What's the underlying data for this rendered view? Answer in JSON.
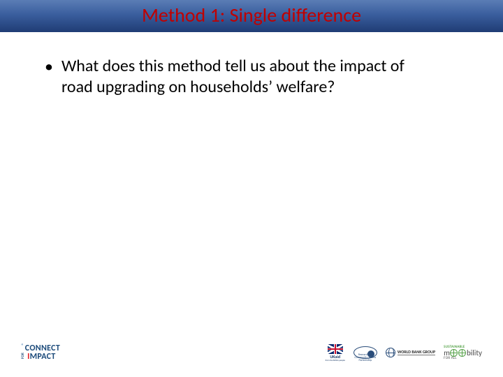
{
  "title": {
    "text": "Method 1: Single difference",
    "color": "#c00000",
    "fontsize": 28
  },
  "title_band": {
    "gradient_top": "#5b7db5",
    "gradient_mid": "#3a5e9e",
    "gradient_bottom": "#1f3c74"
  },
  "body": {
    "bullets": [
      {
        "text": "What does this method tell us about the impact of road upgrading on households’ welfare?"
      }
    ],
    "fontsize": 24,
    "text_color": "#000000"
  },
  "footer": {
    "connect": {
      "top": "CONNECT",
      "for": "FOR",
      "impact_i": "I",
      "impact_rest": "MPACT",
      "primary_color": "#1b4a7a",
      "accent_color": "#e31b23"
    },
    "ukaid": {
      "label": "UKaid",
      "sublabel": "from the British people",
      "flag_blue": "#012169",
      "flag_red": "#C8102E"
    },
    "recap": {
      "label": "Research for Community Access Partnership",
      "color": "#2a4d7a"
    },
    "wbg": {
      "label": "WORLD BANK GROUP",
      "color": "#2a4d7a"
    },
    "sum4all": {
      "top": "SUSTAINABLE",
      "main_left": "m",
      "main_right": "bility",
      "sub": "FOR ALL",
      "green": "#54a147",
      "gray": "#4a4a4a"
    }
  },
  "background_color": "#ffffff"
}
